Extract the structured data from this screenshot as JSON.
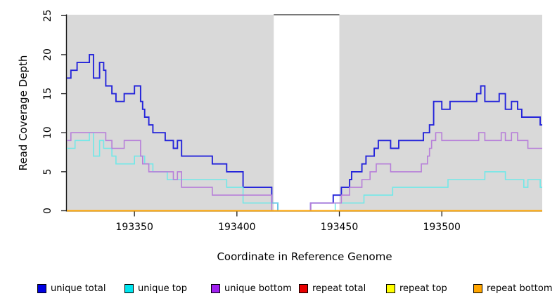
{
  "figure": {
    "x_axis_label": "Coordinate in Reference Genome",
    "y_axis_label": "Read Coverage Depth"
  },
  "legend": {
    "items": [
      {
        "label": "unique total",
        "color": "#0000e1"
      },
      {
        "label": "unique top",
        "color": "#00e5ee"
      },
      {
        "label": "unique bottom",
        "color": "#a020f0"
      },
      {
        "label": "repeat total",
        "color": "#e80000"
      },
      {
        "label": "repeat top",
        "color": "#ffff00"
      },
      {
        "label": "repeat bottom",
        "color": "#ffa500"
      }
    ]
  },
  "chart_data": {
    "type": "line",
    "subtype": "step-post-coverage",
    "title": "",
    "xlabel": "Coordinate in Reference Genome",
    "ylabel": "Read Coverage Depth",
    "x_domain": [
      193317,
      193549
    ],
    "y_domain": [
      0,
      25
    ],
    "x_ticks": [
      193350,
      193400,
      193450,
      193500
    ],
    "y_ticks": [
      0,
      5,
      10,
      15,
      20,
      25
    ],
    "grid": false,
    "legend_position": "bottom",
    "plot_background": "#d9d9d9",
    "white_gap_region": [
      193418,
      193450
    ],
    "series": [
      {
        "name": "unique total",
        "color": "#2424da",
        "width": 1.9,
        "step_points": [
          [
            193317,
            17
          ],
          [
            193319,
            18
          ],
          [
            193322,
            19
          ],
          [
            193328,
            20
          ],
          [
            193330,
            17
          ],
          [
            193333,
            19
          ],
          [
            193335,
            18
          ],
          [
            193336,
            16
          ],
          [
            193339,
            15
          ],
          [
            193341,
            14
          ],
          [
            193345,
            15
          ],
          [
            193350,
            16
          ],
          [
            193353,
            14
          ],
          [
            193354,
            13
          ],
          [
            193355,
            12
          ],
          [
            193357,
            11
          ],
          [
            193359,
            10
          ],
          [
            193365,
            9
          ],
          [
            193369,
            8
          ],
          [
            193371,
            9
          ],
          [
            193373,
            7
          ],
          [
            193388,
            6
          ],
          [
            193395,
            5
          ],
          [
            193403,
            3
          ],
          [
            193417,
            1
          ],
          [
            193420,
            0
          ],
          [
            193436,
            1
          ],
          [
            193447,
            2
          ],
          [
            193451,
            3
          ],
          [
            193455,
            4
          ],
          [
            193456,
            5
          ],
          [
            193461,
            6
          ],
          [
            193463,
            7
          ],
          [
            193467,
            8
          ],
          [
            193469,
            9
          ],
          [
            193475,
            8
          ],
          [
            193479,
            9
          ],
          [
            193491,
            10
          ],
          [
            193494,
            11
          ],
          [
            193496,
            14
          ],
          [
            193500,
            13
          ],
          [
            193504,
            14
          ],
          [
            193517,
            15
          ],
          [
            193519,
            16
          ],
          [
            193521,
            14
          ],
          [
            193528,
            15
          ],
          [
            193531,
            13
          ],
          [
            193534,
            14
          ],
          [
            193537,
            13
          ],
          [
            193539,
            12
          ],
          [
            193548,
            11
          ]
        ]
      },
      {
        "name": "unique top",
        "color": "#72e8e8",
        "width": 1.6,
        "step_points": [
          [
            193317,
            8
          ],
          [
            193321,
            9
          ],
          [
            193328,
            10
          ],
          [
            193330,
            7
          ],
          [
            193333,
            9
          ],
          [
            193335,
            8
          ],
          [
            193339,
            7
          ],
          [
            193341,
            6
          ],
          [
            193350,
            7
          ],
          [
            193355,
            6
          ],
          [
            193359,
            5
          ],
          [
            193366,
            4
          ],
          [
            193395,
            3
          ],
          [
            193403,
            1
          ],
          [
            193420,
            0
          ],
          [
            193448,
            1
          ],
          [
            193462,
            2
          ],
          [
            193476,
            3
          ],
          [
            193503,
            4
          ],
          [
            193521,
            5
          ],
          [
            193531,
            4
          ],
          [
            193540,
            3
          ],
          [
            193542,
            4
          ],
          [
            193548,
            3
          ]
        ]
      },
      {
        "name": "unique bottom",
        "color": "#b77fd9",
        "width": 1.6,
        "step_points": [
          [
            193317,
            9
          ],
          [
            193319,
            10
          ],
          [
            193336,
            9
          ],
          [
            193339,
            8
          ],
          [
            193345,
            9
          ],
          [
            193353,
            7
          ],
          [
            193354,
            6
          ],
          [
            193357,
            5
          ],
          [
            193369,
            4
          ],
          [
            193371,
            5
          ],
          [
            193373,
            3
          ],
          [
            193388,
            2
          ],
          [
            193417,
            0
          ],
          [
            193436,
            1
          ],
          [
            193451,
            2
          ],
          [
            193455,
            3
          ],
          [
            193461,
            4
          ],
          [
            193465,
            5
          ],
          [
            193468,
            6
          ],
          [
            193475,
            5
          ],
          [
            193490,
            6
          ],
          [
            193493,
            7
          ],
          [
            193494,
            8
          ],
          [
            193495,
            9
          ],
          [
            193497,
            10
          ],
          [
            193500,
            9
          ],
          [
            193518,
            10
          ],
          [
            193521,
            9
          ],
          [
            193529,
            10
          ],
          [
            193531,
            9
          ],
          [
            193534,
            10
          ],
          [
            193537,
            9
          ],
          [
            193542,
            8
          ]
        ]
      },
      {
        "name": "repeat total",
        "color": "#cc0000",
        "width": 1.5,
        "step_points": [
          [
            193317,
            0
          ]
        ]
      },
      {
        "name": "repeat top",
        "color": "#ffff00",
        "width": 1.5,
        "step_points": [
          [
            193317,
            0
          ]
        ]
      },
      {
        "name": "repeat bottom",
        "color": "#ffa500",
        "width": 2,
        "step_points": [
          [
            193317,
            0
          ]
        ]
      }
    ]
  }
}
